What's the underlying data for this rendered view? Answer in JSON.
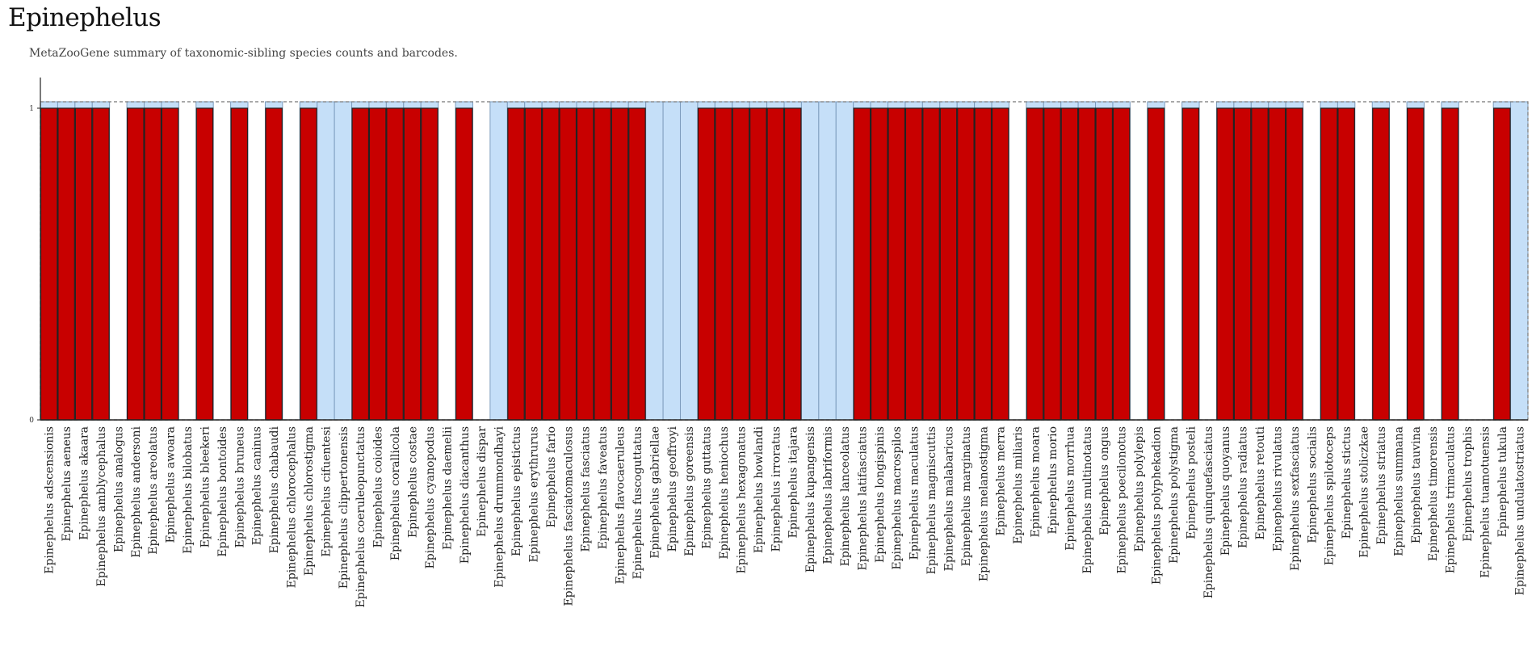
{
  "header": {
    "title": "Epinephelus",
    "subtitle": "MetaZooGene summary of taxonomic-sibling species counts and barcodes."
  },
  "colors": {
    "bar": "#c80000",
    "bar_stroke": "#222222",
    "background_box": "#c5dff8",
    "background_box_stroke": "#7d9cbd",
    "dashed_outline": "#777777",
    "axis": "#222222"
  },
  "chart_data": {
    "type": "bar",
    "title": "",
    "xlabel": "",
    "ylabel": "",
    "ylim": [
      0,
      1
    ],
    "y_ticks": [
      "0",
      "1"
    ],
    "grid": false,
    "legend": "none",
    "categories": [
      "Epinephelus adscensionis",
      "Epinephelus aeneus",
      "Epinephelus akaara",
      "Epinephelus amblycephalus",
      "Epinephelus analogus",
      "Epinephelus andersoni",
      "Epinephelus areolatus",
      "Epinephelus awoara",
      "Epinephelus bilobatus",
      "Epinephelus bleekeri",
      "Epinephelus bontoides",
      "Epinephelus bruneus",
      "Epinephelus caninus",
      "Epinephelus chabaudi",
      "Epinephelus chlorocephalus",
      "Epinephelus chlorostigma",
      "Epinephelus cifuentesi",
      "Epinephelus clippertonensis",
      "Epinephelus coeruleopunctatus",
      "Epinephelus coioides",
      "Epinephelus corallicola",
      "Epinephelus costae",
      "Epinephelus cyanopodus",
      "Epinephelus daemelii",
      "Epinephelus diacanthus",
      "Epinephelus dispar",
      "Epinephelus drummondhayi",
      "Epinephelus epistictus",
      "Epinephelus erythrurus",
      "Epinephelus fario",
      "Epinephelus fasciatomaculosus",
      "Epinephelus fasciatus",
      "Epinephelus faveatus",
      "Epinephelus flavocaeruleus",
      "Epinephelus fuscoguttatus",
      "Epinephelus gabriellae",
      "Epinephelus geoffroyi",
      "Epinephelus goreensis",
      "Epinephelus guttatus",
      "Epinephelus heniochus",
      "Epinephelus hexagonatus",
      "Epinephelus howlandi",
      "Epinephelus irroratus",
      "Epinephelus itajara",
      "Epinephelus kupangensis",
      "Epinephelus labriformis",
      "Epinephelus lanceolatus",
      "Epinephelus latifasciatus",
      "Epinephelus longispinis",
      "Epinephelus macrospilos",
      "Epinephelus maculatus",
      "Epinephelus magniscuttis",
      "Epinephelus malabaricus",
      "Epinephelus marginatus",
      "Epinephelus melanostigma",
      "Epinephelus merra",
      "Epinephelus miliaris",
      "Epinephelus moara",
      "Epinephelus morio",
      "Epinephelus morrhua",
      "Epinephelus multinotatus",
      "Epinephelus ongus",
      "Epinephelus poecilonotus",
      "Epinephelus polylepis",
      "Epinephelus polyphekadion",
      "Epinephelus polystigma",
      "Epinephelus posteli",
      "Epinephelus quinquefasciatus",
      "Epinephelus quoyanus",
      "Epinephelus radiatus",
      "Epinephelus retouti",
      "Epinephelus rivulatus",
      "Epinephelus sexfasciatus",
      "Epinephelus socialis",
      "Epinephelus spilotoceps",
      "Epinephelus stictus",
      "Epinephelus stoliczkae",
      "Epinephelus striatus",
      "Epinephelus summana",
      "Epinephelus tauvina",
      "Epinephelus timorensis",
      "Epinephelus trimaculatus",
      "Epinephelus trophis",
      "Epinephelus tuamotuensis",
      "Epinephelus tukula",
      "Epinephelus undulatostriatus"
    ],
    "values": [
      1,
      1,
      1,
      1,
      0,
      1,
      1,
      1,
      0,
      1,
      0,
      1,
      0,
      1,
      0,
      1,
      0,
      0,
      1,
      1,
      1,
      1,
      1,
      0,
      1,
      0,
      0,
      1,
      1,
      1,
      1,
      1,
      1,
      1,
      1,
      0,
      0,
      0,
      1,
      1,
      1,
      1,
      1,
      1,
      0,
      0,
      0,
      1,
      1,
      1,
      1,
      1,
      1,
      1,
      1,
      1,
      0,
      1,
      1,
      1,
      1,
      1,
      1,
      0,
      1,
      0,
      1,
      0,
      1,
      1,
      1,
      1,
      1,
      0,
      1,
      1,
      0,
      1,
      0,
      1,
      0,
      1,
      0,
      0,
      1,
      0
    ],
    "barcoded_box": [
      1,
      1,
      1,
      1,
      0,
      1,
      1,
      1,
      0,
      1,
      0,
      1,
      0,
      1,
      0,
      1,
      1,
      1,
      1,
      1,
      1,
      1,
      1,
      0,
      1,
      0,
      1,
      1,
      1,
      1,
      1,
      1,
      1,
      1,
      1,
      1,
      1,
      1,
      1,
      1,
      1,
      1,
      1,
      1,
      1,
      1,
      1,
      1,
      1,
      1,
      1,
      1,
      1,
      1,
      1,
      1,
      0,
      1,
      1,
      1,
      1,
      1,
      1,
      0,
      1,
      0,
      1,
      0,
      1,
      1,
      1,
      1,
      1,
      0,
      1,
      1,
      0,
      1,
      0,
      1,
      0,
      1,
      0,
      0,
      1,
      1
    ]
  }
}
